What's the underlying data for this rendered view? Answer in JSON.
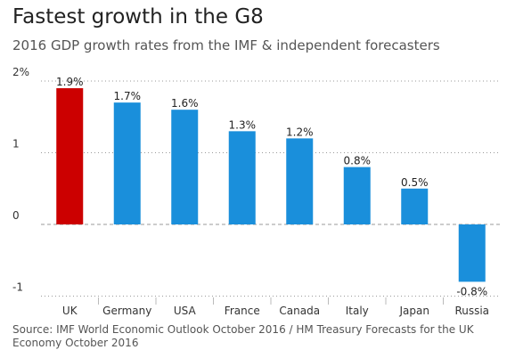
{
  "title": "Fastest growth in the G8",
  "subtitle": "2016 GDP growth rates from the IMF & independent forecasters",
  "source": "Source: IMF World Economic Outlook October 2016 / HM Treasury Forecasts for the UK Economy October 2016",
  "colors": {
    "highlight": "#cc0000",
    "bar": "#1a8fdb",
    "grid": "#9a9a9a",
    "text": "#333333"
  },
  "chart_data": {
    "type": "bar",
    "categories": [
      "UK",
      "Germany",
      "USA",
      "France",
      "Canada",
      "Italy",
      "Japan",
      "Russia"
    ],
    "values": [
      1.9,
      1.7,
      1.6,
      1.3,
      1.2,
      0.8,
      0.5,
      -0.8
    ],
    "data_labels": [
      "1.9%",
      "1.7%",
      "1.6%",
      "1.3%",
      "1.2%",
      "0.8%",
      "0.5%",
      "-0.8%"
    ],
    "highlight_category": "UK",
    "y_ticks": [
      {
        "value": 2,
        "label": "2%"
      },
      {
        "value": 1,
        "label": "1"
      },
      {
        "value": 0,
        "label": "0"
      },
      {
        "value": -1,
        "label": "-1"
      }
    ],
    "ylim": [
      -1,
      2
    ],
    "grid": true,
    "xlabel": "",
    "ylabel": ""
  }
}
